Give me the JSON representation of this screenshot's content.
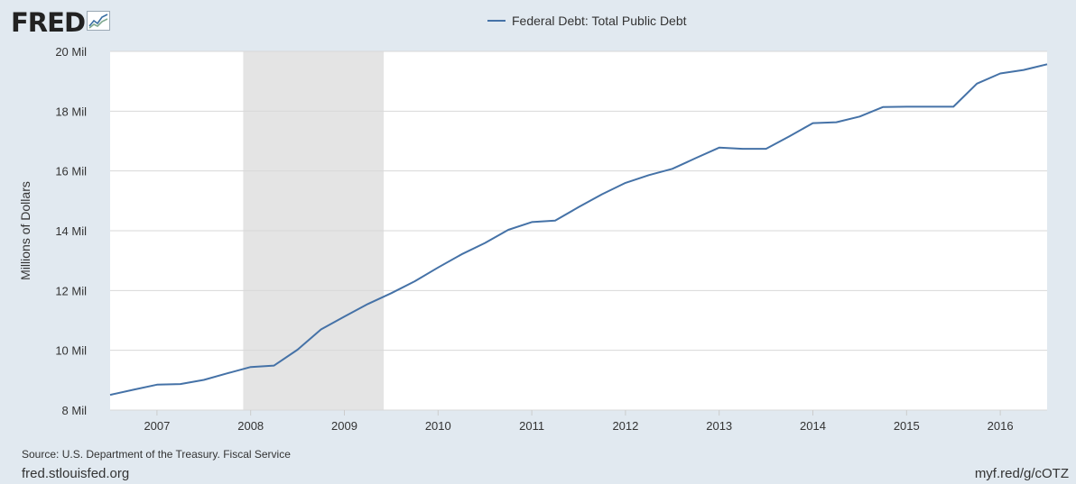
{
  "header": {
    "logo_text": "FRED",
    "logo_icon": "line-chart-icon"
  },
  "footer": {
    "source": "Source: U.S. Department of the Treasury. Fiscal Service",
    "site": "fred.stlouisfed.org",
    "shortlink": "myf.red/g/cOTZ"
  },
  "colors": {
    "series": "#4572a7",
    "recession": "#e4e4e4",
    "background": "#e1e9f0"
  },
  "chart_data": {
    "type": "line",
    "title": "",
    "xlabel": "",
    "ylabel": "Millions of Dollars",
    "xlim": [
      2006.5,
      2016.5
    ],
    "ylim": [
      8,
      20
    ],
    "y_ticks": [
      {
        "value": 8,
        "label": "8 Mil"
      },
      {
        "value": 10,
        "label": "10 Mil"
      },
      {
        "value": 12,
        "label": "12 Mil"
      },
      {
        "value": 14,
        "label": "14 Mil"
      },
      {
        "value": 16,
        "label": "16 Mil"
      },
      {
        "value": 18,
        "label": "18 Mil"
      },
      {
        "value": 20,
        "label": "20 Mil"
      }
    ],
    "x_ticks": [
      "2007",
      "2008",
      "2009",
      "2010",
      "2011",
      "2012",
      "2013",
      "2014",
      "2015",
      "2016"
    ],
    "grid": "horizontal",
    "legend": "top-center",
    "recession": {
      "start": 2007.92,
      "end": 2009.42
    },
    "series": [
      {
        "name": "Federal Debt: Total Public Debt",
        "x": [
          2006.5,
          2006.75,
          2007.0,
          2007.25,
          2007.5,
          2007.75,
          2008.0,
          2008.25,
          2008.5,
          2008.75,
          2009.0,
          2009.25,
          2009.5,
          2009.75,
          2010.0,
          2010.25,
          2010.5,
          2010.75,
          2011.0,
          2011.25,
          2011.5,
          2011.75,
          2012.0,
          2012.25,
          2012.5,
          2012.75,
          2013.0,
          2013.25,
          2013.5,
          2013.75,
          2014.0,
          2014.25,
          2014.5,
          2014.75,
          2015.0,
          2015.25,
          2015.5,
          2015.75,
          2016.0,
          2016.25,
          2016.5
        ],
        "values": [
          8.51,
          8.68,
          8.85,
          8.87,
          9.01,
          9.23,
          9.44,
          9.49,
          10.02,
          10.7,
          11.13,
          11.55,
          11.91,
          12.31,
          12.77,
          13.21,
          13.59,
          14.03,
          14.29,
          14.34,
          14.79,
          15.22,
          15.6,
          15.86,
          16.07,
          16.43,
          16.78,
          16.74,
          16.74,
          17.16,
          17.6,
          17.63,
          17.82,
          18.14,
          18.15,
          18.15,
          18.15,
          18.92,
          19.26,
          19.38,
          19.57
        ]
      }
    ]
  }
}
